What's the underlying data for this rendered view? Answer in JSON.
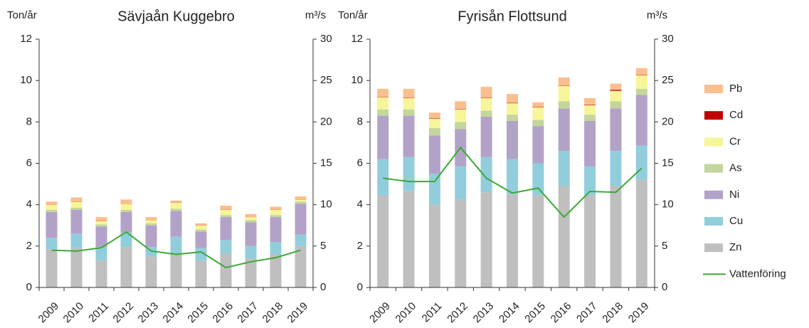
{
  "chart_data": [
    {
      "type": "bar",
      "stacked": true,
      "title": "Sävjaån Kuggebro",
      "ylabel": "Ton/år",
      "y2label": "m³/s",
      "categories": [
        "2009",
        "2010",
        "2011",
        "2012",
        "2013",
        "2014",
        "2015",
        "2016",
        "2017",
        "2018",
        "2019"
      ],
      "ylim": [
        0,
        12
      ],
      "yticks": [
        0,
        2,
        4,
        6,
        8,
        10,
        12
      ],
      "y2lim": [
        0,
        30
      ],
      "y2ticks": [
        0,
        5,
        10,
        15,
        20,
        25,
        30
      ],
      "series": [
        {
          "name": "Zn",
          "color": "#bfbfbf",
          "values": [
            1.85,
            1.9,
            1.3,
            1.95,
            1.5,
            1.6,
            1.3,
            1.65,
            1.4,
            1.6,
            2.0
          ]
        },
        {
          "name": "Cu",
          "color": "#92cddc",
          "values": [
            0.55,
            0.7,
            0.65,
            0.7,
            0.45,
            0.85,
            0.6,
            0.65,
            0.6,
            0.6,
            0.55
          ]
        },
        {
          "name": "Ni",
          "color": "#b3a2c7",
          "values": [
            1.25,
            1.15,
            1.0,
            1.0,
            1.05,
            1.25,
            0.8,
            1.1,
            1.15,
            1.2,
            1.5
          ]
        },
        {
          "name": "As",
          "color": "#c3d69b",
          "values": [
            0.1,
            0.1,
            0.1,
            0.1,
            0.1,
            0.1,
            0.1,
            0.1,
            0.1,
            0.1,
            0.1
          ]
        },
        {
          "name": "Cr",
          "color": "#f7f59a",
          "values": [
            0.25,
            0.3,
            0.15,
            0.3,
            0.15,
            0.3,
            0.2,
            0.25,
            0.15,
            0.25,
            0.1
          ]
        },
        {
          "name": "Cd",
          "color": "#c00000",
          "values": [
            0.01,
            0.01,
            0.01,
            0.01,
            0.01,
            0.01,
            0.01,
            0.01,
            0.01,
            0.01,
            0.01
          ]
        },
        {
          "name": "Pb",
          "color": "#fabf8f",
          "values": [
            0.14,
            0.19,
            0.19,
            0.19,
            0.14,
            0.09,
            0.09,
            0.19,
            0.14,
            0.14,
            0.14
          ]
        },
        {
          "name": "Vattenföring",
          "color": "#3aaa35",
          "axis": "y2",
          "values": [
            4.5,
            4.4,
            4.8,
            6.7,
            4.4,
            4.0,
            4.3,
            2.4,
            3.1,
            3.6,
            4.5
          ]
        }
      ]
    },
    {
      "type": "bar",
      "stacked": true,
      "title": "Fyrisån Flottsund",
      "ylabel": "Ton/år",
      "y2label": "m³/s",
      "categories": [
        "2009",
        "2010",
        "2011",
        "2012",
        "2013",
        "2014",
        "2015",
        "2016",
        "2017",
        "2018",
        "2019"
      ],
      "ylim": [
        0,
        12
      ],
      "yticks": [
        0,
        2,
        4,
        6,
        8,
        10,
        12
      ],
      "y2lim": [
        0,
        30
      ],
      "y2ticks": [
        0,
        5,
        10,
        15,
        20,
        25,
        30
      ],
      "series": [
        {
          "name": "Zn",
          "color": "#bfbfbf",
          "values": [
            4.45,
            4.65,
            4.0,
            4.25,
            4.6,
            4.5,
            4.45,
            4.9,
            4.45,
            4.9,
            5.2
          ]
        },
        {
          "name": "Cu",
          "color": "#92cddc",
          "values": [
            1.75,
            1.65,
            1.5,
            1.6,
            1.7,
            1.7,
            1.55,
            1.7,
            1.4,
            1.7,
            1.65
          ]
        },
        {
          "name": "Ni",
          "color": "#b3a2c7",
          "values": [
            2.1,
            2.0,
            1.85,
            1.8,
            1.95,
            1.85,
            1.8,
            2.05,
            2.2,
            2.05,
            2.45
          ]
        },
        {
          "name": "As",
          "color": "#c3d69b",
          "values": [
            0.3,
            0.3,
            0.35,
            0.35,
            0.3,
            0.3,
            0.3,
            0.35,
            0.3,
            0.35,
            0.3
          ]
        },
        {
          "name": "Cr",
          "color": "#f7f59a",
          "values": [
            0.6,
            0.55,
            0.45,
            0.6,
            0.6,
            0.55,
            0.6,
            0.75,
            0.45,
            0.5,
            0.65
          ]
        },
        {
          "name": "Cd",
          "color": "#c00000",
          "values": [
            0.02,
            0.02,
            0.02,
            0.02,
            0.02,
            0.02,
            0.02,
            0.02,
            0.02,
            0.05,
            0.02
          ]
        },
        {
          "name": "Pb",
          "color": "#fabf8f",
          "values": [
            0.38,
            0.43,
            0.28,
            0.38,
            0.53,
            0.43,
            0.23,
            0.38,
            0.33,
            0.3,
            0.33
          ]
        },
        {
          "name": "Vattenföring",
          "color": "#3aaa35",
          "axis": "y2",
          "values": [
            13.2,
            12.8,
            12.8,
            16.9,
            13.2,
            11.4,
            12.0,
            8.5,
            11.6,
            11.5,
            14.4
          ]
        }
      ]
    }
  ]
}
